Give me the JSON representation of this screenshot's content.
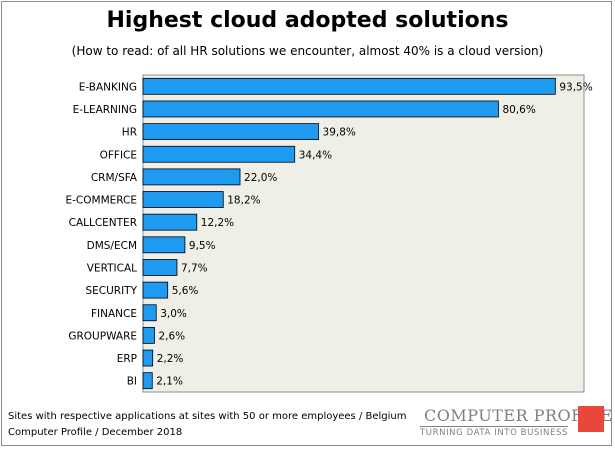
{
  "chart_data": {
    "type": "bar",
    "orientation": "horizontal",
    "title": "Highest cloud adopted solutions",
    "subtitle": "(How to read: of all HR solutions we encounter, almost 40% is a cloud version)",
    "categories": [
      "E-BANKING",
      "E-LEARNING",
      "HR",
      "OFFICE",
      "CRM/SFA",
      "E-COMMERCE",
      "CALLCENTER",
      "DMS/ECM",
      "VERTICAL",
      "SECURITY",
      "FINANCE",
      "GROUPWARE",
      "ERP",
      "BI"
    ],
    "values": [
      93.5,
      80.6,
      39.8,
      34.4,
      22.0,
      18.2,
      12.2,
      9.5,
      7.7,
      5.6,
      3.0,
      2.6,
      2.2,
      2.1
    ],
    "value_labels": [
      "93,5%",
      "80,6%",
      "39,8%",
      "34,4%",
      "22,0%",
      "18,2%",
      "12,2%",
      "9,5%",
      "7,7%",
      "5,6%",
      "3,0%",
      "2,6%",
      "2,2%",
      "2,1%"
    ],
    "xlim": [
      0,
      100
    ],
    "xlabel": "",
    "ylabel": "",
    "grid": false,
    "bar_color": "#1e9bf0",
    "plot_background": "#f0efe7"
  },
  "footnote": {
    "line1": "Sites with respective applications at sites with 50 or more employees / Belgium",
    "line2": "Computer Profile / December 2018"
  },
  "logo": {
    "name": "COMPUTER PROFILE",
    "tagline": "TURNING DATA INTO BUSINESS",
    "accent_color": "#e8473b"
  }
}
